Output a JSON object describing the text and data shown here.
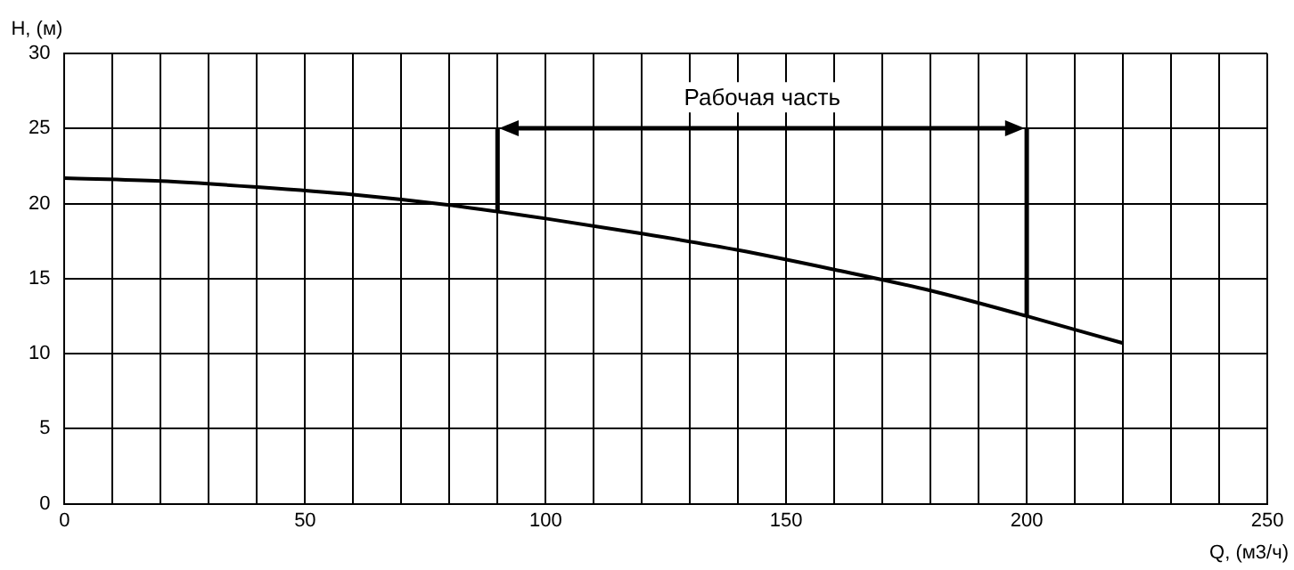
{
  "chart_data": {
    "type": "line",
    "xlabel": "Q, (м3/ч)",
    "ylabel": "H, (м)",
    "x": [
      0,
      20,
      40,
      60,
      80,
      100,
      120,
      140,
      160,
      180,
      200,
      220
    ],
    "series": [
      {
        "color": "#000000",
        "values": [
          21.7,
          21.5,
          21.1,
          20.6,
          19.9,
          19.0,
          18.0,
          16.9,
          15.6,
          14.2,
          12.5,
          10.7
        ]
      }
    ],
    "xlim": [
      0,
      250
    ],
    "xticks": [
      0,
      {
        "value": 10,
        "label": null
      },
      {
        "value": 20,
        "label": null
      },
      {
        "value": 30,
        "label": null
      },
      {
        "value": 40,
        "label": null
      },
      50,
      {
        "value": 60,
        "label": null
      },
      {
        "value": 70,
        "label": null
      },
      {
        "value": 80,
        "label": null
      },
      {
        "value": 90,
        "label": null
      },
      100,
      {
        "value": 110,
        "label": null
      },
      {
        "value": 120,
        "label": null
      },
      {
        "value": 130,
        "label": null
      },
      {
        "value": 140,
        "label": null
      },
      150,
      {
        "value": 160,
        "label": null
      },
      {
        "value": 170,
        "label": null
      },
      {
        "value": 180,
        "label": null
      },
      {
        "value": 190,
        "label": null
      },
      200,
      {
        "value": 210,
        "label": null
      },
      {
        "value": 220,
        "label": null
      },
      {
        "value": 230,
        "label": null
      },
      {
        "value": 240,
        "label": null
      },
      250
    ],
    "ylim": [
      0,
      30
    ],
    "yticks": [
      0,
      5,
      10,
      15,
      20,
      25,
      30
    ],
    "grid": true,
    "legend": false,
    "marker": "none",
    "line_style": "solid",
    "ref_lines": [
      {
        "axis": "x",
        "value": 90,
        "color": "#000000"
      },
      {
        "axis": "x",
        "value": 200,
        "color": "#000000"
      }
    ],
    "annotations": [
      "Рабочая часть"
    ]
  }
}
